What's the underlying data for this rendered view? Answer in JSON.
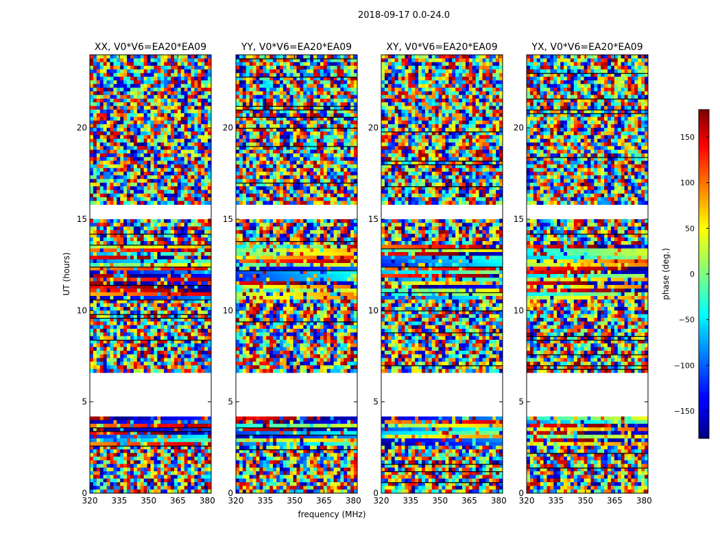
{
  "figure": {
    "suptitle": "2018-09-17 0.0-24.0"
  },
  "chart_data": {
    "type": "heatmap",
    "xlabel": "frequency (MHz)",
    "ylabel": "UT (hours)",
    "xlim": [
      320,
      382
    ],
    "ylim": [
      0,
      24
    ],
    "xticks": [
      320,
      335,
      350,
      365,
      380
    ],
    "yticks": [
      0,
      5,
      10,
      15,
      20
    ],
    "colormap": "jet",
    "colorbar": {
      "label": "phase (deg.)",
      "range": [
        -180,
        180
      ],
      "ticks": [
        150,
        100,
        50,
        0,
        -50,
        -100,
        -150
      ],
      "tick_labels": [
        "150",
        "100",
        "50",
        "0",
        "−50",
        "−100",
        "−150"
      ]
    },
    "flagged_gaps_hours": [
      [
        4.25,
        6.6
      ],
      [
        15.0,
        15.7
      ]
    ],
    "panels": [
      {
        "title": "XX, V0*V6=EA20*EA09"
      },
      {
        "title": "YY, V0*V6=EA20*EA09"
      },
      {
        "title": "XY, V0*V6=EA20*EA09"
      },
      {
        "title": "YX, V0*V6=EA20*EA09"
      }
    ]
  }
}
